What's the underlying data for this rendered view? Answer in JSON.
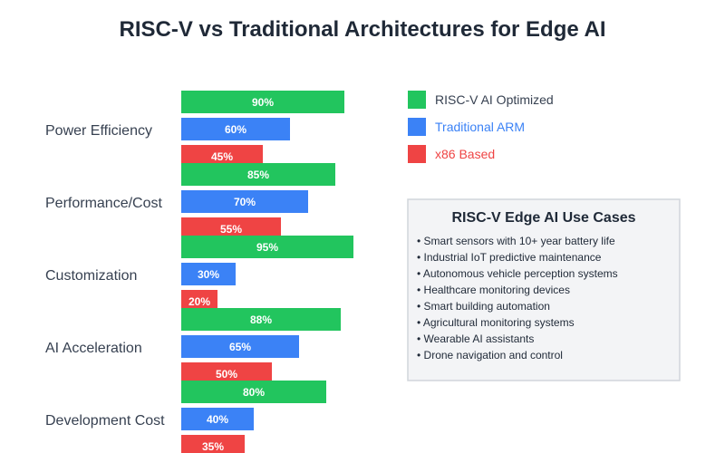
{
  "chart_data": {
    "type": "bar",
    "orientation": "horizontal",
    "title": "RISC-V vs Traditional Architectures for Edge AI",
    "categories": [
      "Power Efficiency",
      "Performance/Cost",
      "Customization",
      "AI Acceleration",
      "Development Cost"
    ],
    "series": [
      {
        "name": "RISC-V AI Optimized",
        "color": "#22c55e",
        "values": [
          90,
          85,
          95,
          88,
          80
        ]
      },
      {
        "name": "Traditional ARM",
        "color": "#3b82f6",
        "values": [
          60,
          70,
          30,
          65,
          40
        ]
      },
      {
        "name": "x86 Based",
        "color": "#ef4444",
        "values": [
          45,
          55,
          20,
          50,
          35
        ]
      }
    ],
    "value_suffix": "%",
    "xlim": [
      0,
      100
    ],
    "legend_position": "top-right"
  },
  "use_cases_panel": {
    "title": "RISC-V Edge AI Use Cases",
    "items": [
      "• Smart sensors with 10+ year battery life",
      "• Industrial IoT predictive maintenance",
      "• Autonomous vehicle perception systems",
      "• Healthcare monitoring devices",
      "• Smart building automation",
      "• Agricultural monitoring systems",
      "• Wearable AI assistants",
      "• Drone navigation and control"
    ]
  },
  "colors": {
    "title": "#1f2937",
    "category_text": "#374151",
    "panel_bg": "#f3f4f6",
    "panel_border": "#d1d5db"
  }
}
